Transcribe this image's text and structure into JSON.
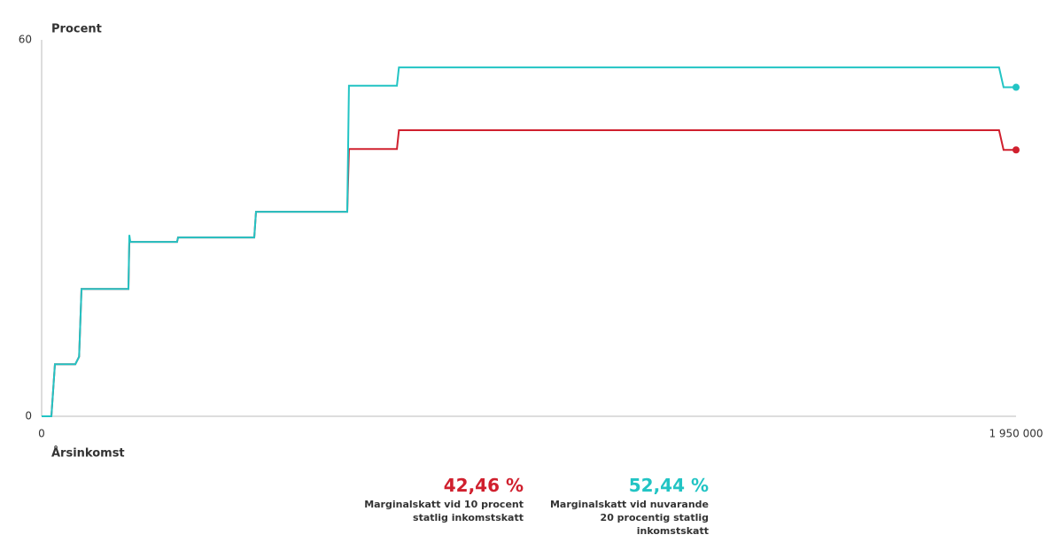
{
  "chart_data": {
    "type": "line",
    "ylabel": "Procent",
    "xlabel": "Årsinkomst",
    "xlim": [
      0,
      1950000
    ],
    "ylim": [
      0,
      60
    ],
    "xticks": [
      0,
      {
        "value": 1950000,
        "label": "1 950 000"
      }
    ],
    "yticks": [
      0,
      60
    ],
    "x": [
      0,
      19500,
      26600,
      67400,
      75000,
      79800,
      173700,
      175500,
      177500,
      271000,
      273000,
      425500,
      429000,
      611600,
      615000,
      711000,
      715000,
      1916000,
      1925000,
      1950000
    ],
    "series": [
      {
        "name": "Marginalskatt vid 10 procent statlig inkomstskatt",
        "color": "#d0202e",
        "end_label": "42,46 %",
        "values": [
          0,
          0,
          8.3,
          8.3,
          9.5,
          20.3,
          20.3,
          27.8,
          27.8,
          27.8,
          28.5,
          28.5,
          32.6,
          32.6,
          42.6,
          42.6,
          45.6,
          45.6,
          42.46,
          42.46
        ]
      },
      {
        "name": "Marginalskatt vid nuvarande 20 procentig statlig inkomstskatt",
        "color": "#22c4c4",
        "end_label": "52,44 %",
        "values": [
          0,
          0,
          8.3,
          8.3,
          9.5,
          20.3,
          20.3,
          28.9,
          27.8,
          27.8,
          28.5,
          28.5,
          32.6,
          32.6,
          52.7,
          52.7,
          55.6,
          55.6,
          52.44,
          52.44
        ]
      }
    ]
  }
}
